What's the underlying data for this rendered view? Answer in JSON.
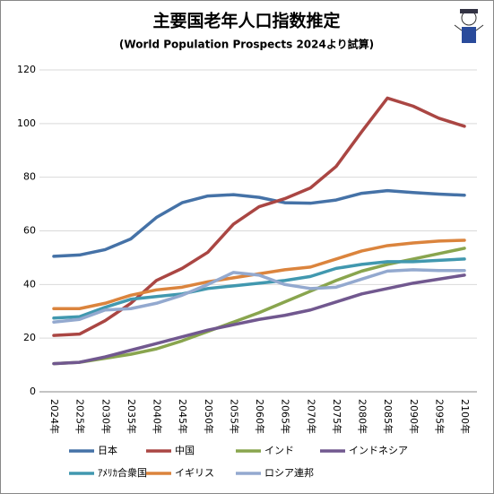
{
  "chart_data": {
    "type": "line",
    "title": "主要国老年人口指数推定",
    "subtitle": "(World Population Prospects 2024より試算)",
    "categories": [
      "2024年",
      "2025年",
      "2030年",
      "2035年",
      "2040年",
      "2045年",
      "2050年",
      "2055年",
      "2060年",
      "2065年",
      "2070年",
      "2075年",
      "2080年",
      "2085年",
      "2090年",
      "2095年",
      "2100年"
    ],
    "series": [
      {
        "name": "日本",
        "color": "#4572a7",
        "values": [
          50.5,
          51,
          53,
          57,
          65,
          70.5,
          73,
          73.5,
          72.5,
          70.5,
          70.3,
          71.5,
          74,
          75,
          74.3,
          73.7,
          73.3
        ]
      },
      {
        "name": "中国",
        "color": "#aa4643",
        "values": [
          21,
          21.5,
          26.5,
          33,
          41.5,
          46,
          52,
          62.5,
          69,
          72,
          76,
          84,
          97,
          109.5,
          106.5,
          102,
          99
        ]
      },
      {
        "name": "インド",
        "color": "#89a54e",
        "values": [
          10.5,
          11,
          12.5,
          14,
          16,
          19,
          22.5,
          26,
          29.5,
          33.5,
          37.5,
          41.5,
          45,
          47.5,
          49.5,
          51.5,
          53.5
        ]
      },
      {
        "name": "インドネシア",
        "color": "#71588f",
        "values": [
          10.5,
          11,
          13,
          15.5,
          18,
          20.5,
          23,
          25,
          27,
          28.5,
          30.5,
          33.5,
          36.5,
          38.5,
          40.5,
          42,
          43.5
        ]
      },
      {
        "name": "ｱﾒﾘｶ合衆国",
        "color": "#4198af",
        "values": [
          27.5,
          28,
          31.5,
          34.5,
          35.5,
          36.5,
          38.5,
          39.5,
          40.5,
          41.5,
          43,
          46,
          47.5,
          48.5,
          48.5,
          49,
          49.5
        ]
      },
      {
        "name": "イギリス",
        "color": "#db843d",
        "values": [
          31,
          31,
          33,
          36,
          38,
          39,
          41,
          42.5,
          44,
          45.5,
          46.5,
          49.5,
          52.5,
          54.5,
          55.5,
          56.2,
          56.5
        ]
      },
      {
        "name": "ロシア連邦",
        "color": "#93a9cf",
        "values": [
          26,
          27,
          30.5,
          31,
          33,
          36,
          40,
          44.5,
          43.5,
          40,
          38.5,
          39,
          42,
          45,
          45.5,
          45.2,
          45.2
        ]
      }
    ],
    "ylim": [
      0,
      120
    ],
    "yticks": [
      0,
      20,
      40,
      60,
      80,
      100,
      120
    ],
    "grid": true,
    "legend": "bottom"
  }
}
